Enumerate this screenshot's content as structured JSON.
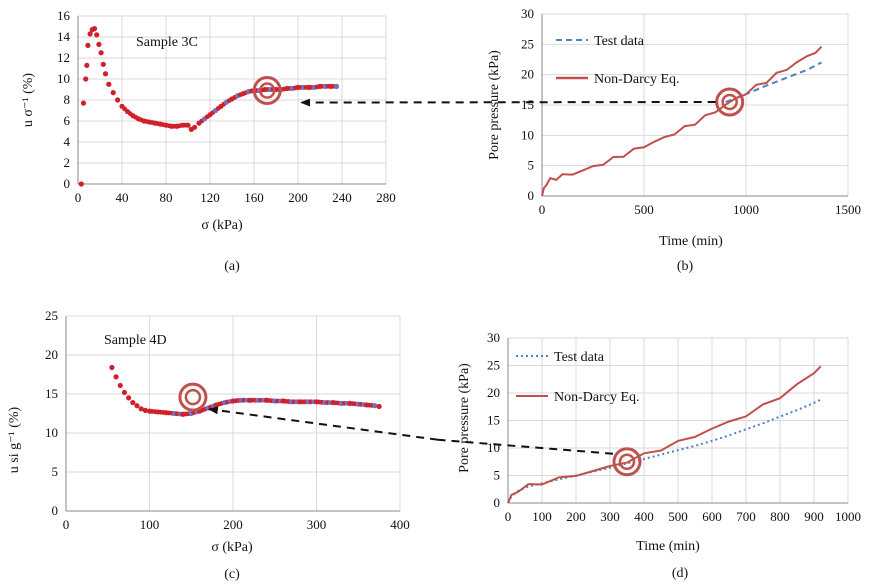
{
  "colors": {
    "scatter": "#d0202a",
    "scatter_blue": "#6f73c8",
    "non_darcy": "#c0504d",
    "test_data": "#4f81bd",
    "marker_ring": "#c0504d",
    "arrow": "#111111",
    "grid": "#d9d9d9"
  },
  "chart_data": [
    {
      "id": "a",
      "type": "scatter",
      "caption": "(a)",
      "annotation": "Sample 3C",
      "xlabel": "σ (kPa)",
      "ylabel": "u σ⁻¹ (%)",
      "xlim": [
        0,
        280
      ],
      "ylim": [
        0,
        16
      ],
      "xticks": [
        "0",
        "40",
        "80",
        "120",
        "160",
        "200",
        "240",
        "280"
      ],
      "yticks": [
        "0",
        "2",
        "4",
        "6",
        "8",
        "10",
        "12",
        "14",
        "16"
      ],
      "grid": true,
      "points_x": [
        3,
        5,
        7,
        8,
        9,
        11,
        13,
        15,
        17,
        19,
        21,
        23,
        25,
        28,
        32,
        36,
        40,
        45,
        50,
        55,
        60,
        65,
        70,
        75,
        80,
        85,
        90,
        95,
        100,
        103,
        106,
        110,
        115,
        120,
        125,
        130,
        135,
        140,
        145,
        150,
        155,
        160,
        165,
        170,
        175,
        180,
        185,
        190,
        195,
        200,
        205,
        210,
        215,
        220,
        225,
        230,
        235
      ],
      "points_y": [
        0,
        7.7,
        10,
        11.3,
        13.2,
        14.3,
        14.7,
        14.8,
        14.2,
        13.3,
        12.5,
        11.4,
        10.5,
        9.5,
        8.7,
        8.0,
        7.4,
        6.9,
        6.5,
        6.2,
        6.0,
        5.9,
        5.8,
        5.7,
        5.6,
        5.5,
        5.5,
        5.6,
        5.6,
        5.2,
        5.4,
        5.8,
        6.2,
        6.6,
        7.0,
        7.4,
        7.8,
        8.1,
        8.4,
        8.6,
        8.8,
        8.9,
        8.9,
        9.0,
        9.0,
        9.0,
        9.0,
        9.1,
        9.1,
        9.2,
        9.2,
        9.2,
        9.2,
        9.3,
        9.3,
        9.3,
        9.3
      ],
      "highlight": [
        172,
        8.9
      ]
    },
    {
      "id": "b",
      "type": "line",
      "caption": "(b)",
      "xlabel": "Time (min)",
      "ylabel": "Pore pressure (kPa)",
      "xlim": [
        0,
        1500
      ],
      "ylim": [
        0,
        30
      ],
      "xticks": [
        "0",
        "500",
        "1000",
        "1500"
      ],
      "yticks": [
        "0",
        "5",
        "10",
        "15",
        "20",
        "25",
        "30"
      ],
      "grid": true,
      "legend_position": "top-left",
      "series": [
        {
          "name": "Test data",
          "style": "dashed",
          "x": [
            900,
            1000,
            1100,
            1200,
            1300,
            1370
          ],
          "y": [
            15.5,
            16.8,
            18.2,
            19.5,
            20.8,
            22
          ]
        },
        {
          "name": "Non-Darcy Eq.",
          "style": "solid",
          "x": [
            0,
            10,
            20,
            40,
            70,
            100,
            150,
            200,
            250,
            300,
            350,
            400,
            450,
            500,
            550,
            600,
            650,
            700,
            750,
            800,
            850,
            900,
            950,
            1000,
            1050,
            1100,
            1150,
            1200,
            1250,
            1300,
            1340,
            1370
          ],
          "y": [
            0,
            1.2,
            2,
            2.6,
            3,
            3.3,
            3.7,
            4.2,
            4.8,
            5.4,
            6.1,
            6.8,
            7.5,
            8.2,
            8.9,
            9.6,
            10.4,
            11.2,
            12.1,
            13.0,
            14.0,
            15.0,
            16.0,
            17.0,
            18.0,
            19.0,
            20.0,
            21.0,
            22.0,
            23.0,
            23.8,
            24.3
          ]
        }
      ],
      "highlight": [
        920,
        15.5
      ]
    },
    {
      "id": "c",
      "type": "scatter",
      "caption": "(c)",
      "annotation": "Sample 4D",
      "xlabel": "σ (kPa)",
      "ylabel": "u si g⁻¹ (%)",
      "xlim": [
        0,
        400
      ],
      "ylim": [
        0,
        25
      ],
      "xticks": [
        "0",
        "100",
        "200",
        "300",
        "400"
      ],
      "yticks": [
        "0",
        "5",
        "10",
        "15",
        "20",
        "25"
      ],
      "grid": true,
      "points_x": [
        55,
        60,
        65,
        70,
        75,
        80,
        85,
        90,
        95,
        100,
        110,
        120,
        130,
        140,
        150,
        160,
        170,
        180,
        190,
        200,
        210,
        220,
        230,
        240,
        250,
        260,
        270,
        280,
        290,
        300,
        310,
        320,
        330,
        340,
        350,
        360,
        370,
        375
      ],
      "points_y": [
        18.4,
        17.2,
        16.1,
        15.2,
        14.5,
        13.9,
        13.5,
        13.1,
        12.9,
        12.8,
        12.7,
        12.6,
        12.5,
        12.4,
        12.5,
        12.8,
        13.2,
        13.6,
        13.9,
        14.1,
        14.2,
        14.2,
        14.2,
        14.2,
        14.1,
        14.1,
        14.0,
        14.0,
        14.0,
        14.0,
        13.9,
        13.9,
        13.8,
        13.8,
        13.7,
        13.6,
        13.5,
        13.4
      ],
      "highlight": [
        152,
        14.6
      ]
    },
    {
      "id": "d",
      "type": "line",
      "caption": "(d)",
      "xlabel": "Time (min)",
      "ylabel": "Pore pressure (kPa)",
      "xlim": [
        0,
        1000
      ],
      "ylim": [
        0,
        30
      ],
      "xticks": [
        "0",
        "100",
        "200",
        "300",
        "400",
        "500",
        "600",
        "700",
        "800",
        "900",
        "1000"
      ],
      "yticks": [
        "0",
        "5",
        "10",
        "15",
        "20",
        "25",
        "30"
      ],
      "grid": true,
      "legend_position": "top-left",
      "series": [
        {
          "name": "Test data",
          "style": "dotted",
          "x": [
            0,
            10,
            30,
            60,
            100,
            150,
            200,
            250,
            300,
            350,
            400,
            450,
            500,
            550,
            600,
            650,
            700,
            750,
            800,
            850,
            900,
            920
          ],
          "y": [
            0,
            1.2,
            2.2,
            3.0,
            3.6,
            4.3,
            5.0,
            5.7,
            6.4,
            7.2,
            8.0,
            8.8,
            9.6,
            10.4,
            11.3,
            12.3,
            13.4,
            14.5,
            15.7,
            16.9,
            18.2,
            18.8
          ]
        },
        {
          "name": "Non-Darcy Eq.",
          "style": "solid",
          "x": [
            0,
            10,
            30,
            60,
            100,
            150,
            200,
            250,
            300,
            350,
            400,
            450,
            500,
            550,
            600,
            650,
            700,
            750,
            800,
            850,
            900,
            920
          ],
          "y": [
            0,
            1.3,
            2.3,
            3.1,
            3.7,
            4.4,
            5.1,
            5.8,
            6.6,
            7.6,
            8.7,
            9.9,
            11.0,
            12.2,
            13.5,
            14.7,
            16.0,
            17.6,
            19.4,
            21.3,
            23.8,
            24.8
          ]
        }
      ],
      "highlight": [
        350,
        7.5
      ]
    }
  ]
}
